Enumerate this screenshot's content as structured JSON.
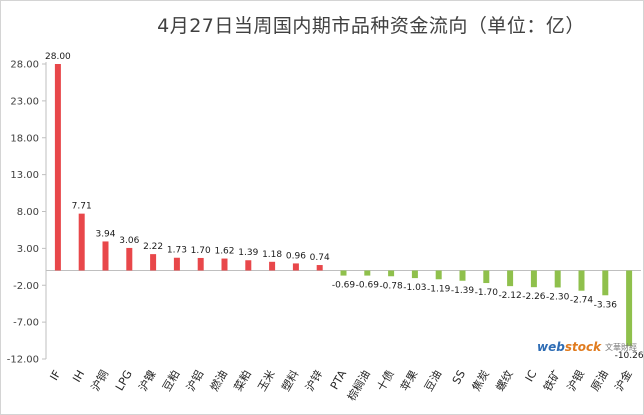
{
  "chart_data": {
    "type": "bar",
    "title": "4月27日当周国内期市品种资金流向（单位：亿）",
    "categories": [
      "IF",
      "IH",
      "沪铜",
      "LPG",
      "沪镍",
      "豆粕",
      "沪铝",
      "燃油",
      "菜粕",
      "玉米",
      "塑料",
      "沪锌",
      "PTA",
      "棕榈油",
      "十债",
      "苹果",
      "豆油",
      "SS",
      "焦炭",
      "螺纹",
      "IC",
      "铁矿",
      "沪银",
      "原油",
      "沪金"
    ],
    "values": [
      28.0,
      7.71,
      3.94,
      3.06,
      2.22,
      1.73,
      1.7,
      1.62,
      1.39,
      1.18,
      0.96,
      0.74,
      -0.69,
      -0.69,
      -0.78,
      -1.03,
      -1.19,
      -1.39,
      -1.7,
      -2.12,
      -2.26,
      -2.3,
      -2.74,
      -3.36,
      -10.26
    ],
    "data_labels": [
      "28.00",
      "7.71",
      "3.94",
      "3.06",
      "2.22",
      "1.73",
      "1.70",
      "1.62",
      "1.39",
      "1.18",
      "0.96",
      "0.74",
      "-0.69",
      "-0.69",
      "-0.78",
      "-1.03",
      "-1.19",
      "-1.39",
      "-1.70",
      "-2.12",
      "-2.26",
      "-2.30",
      "-2.74",
      "-3.36",
      "-10.26"
    ],
    "y_ticks": [
      "28.00",
      "23.00",
      "18.00",
      "13.00",
      "8.00",
      "3.00",
      "-2.00",
      "-7.00",
      "-12.00"
    ],
    "y_tick_values": [
      28,
      23,
      18,
      13,
      8,
      3,
      -2,
      -7,
      -12
    ],
    "ylim": [
      -12,
      28
    ],
    "xlabel": "",
    "ylabel": "",
    "grid": false,
    "legend": "none",
    "colors": {
      "positive": "#e8474a",
      "negative": "#8fc04c",
      "axis": "#bfbfbf",
      "label": "#1a1a1a"
    }
  },
  "watermark": {
    "logo_main": "web",
    "logo_accent": "stock",
    "logo_sub": "文華財經"
  }
}
